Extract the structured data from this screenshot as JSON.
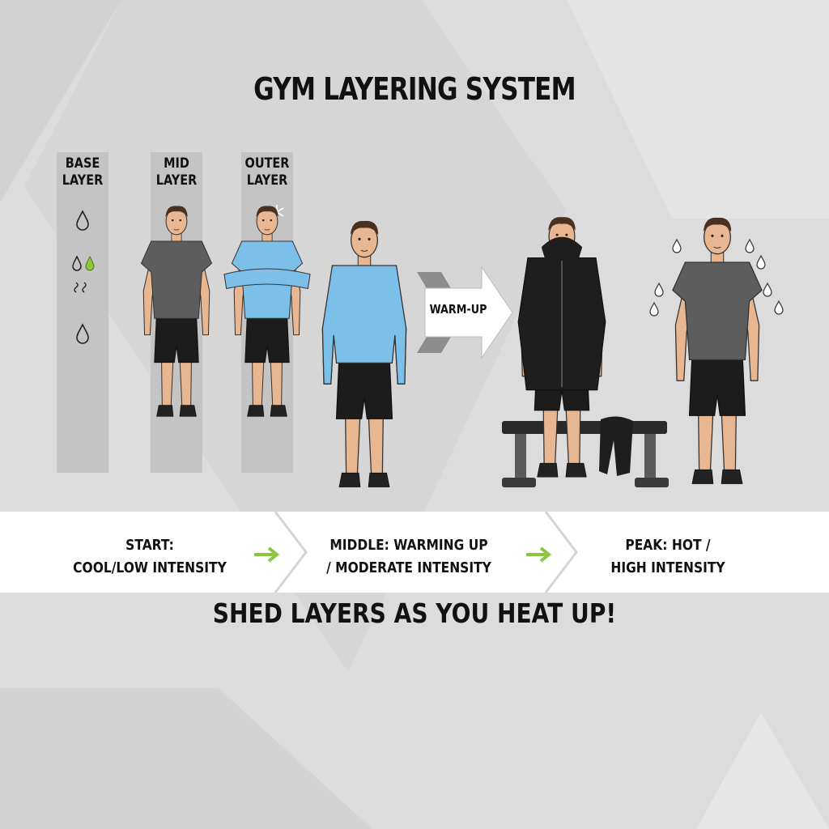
{
  "title": "GYM LAYERING SYSTEM",
  "layers": {
    "base": [
      "BASE",
      "LAYER"
    ],
    "mid": [
      "MID",
      "LAYER"
    ],
    "outer": [
      "OUTER",
      "LAYER"
    ]
  },
  "warmup_label": "WARM-UP",
  "stages": [
    {
      "line1": "START:",
      "line2": "COOL/LOW INTENSITY"
    },
    {
      "line1": "MIDDLE: WARMING UP",
      "line2": "/ MODERATE INTENSITY"
    },
    {
      "line1": "PEAK: HOT /",
      "line2": "HIGH INTENSITY"
    }
  ],
  "footer": "SHED LAYERS AS YOU HEAT UP!",
  "colors": {
    "background": "#dcdcdc",
    "column": "#c4c4c4",
    "banner": "#ffffff",
    "accent_green": "#8cc63f",
    "shirt_blue": "#7cc0ea",
    "shirt_gray": "#5d5d5d",
    "hoodie_black": "#1e1e1e",
    "skin": "#e8b792",
    "hair": "#4a3020"
  },
  "icons": [
    "water-drop-icon",
    "green-drop-icon",
    "steam-icon",
    "snowflake-icon",
    "arrow-right-icon",
    "sweat-drop-icon"
  ]
}
